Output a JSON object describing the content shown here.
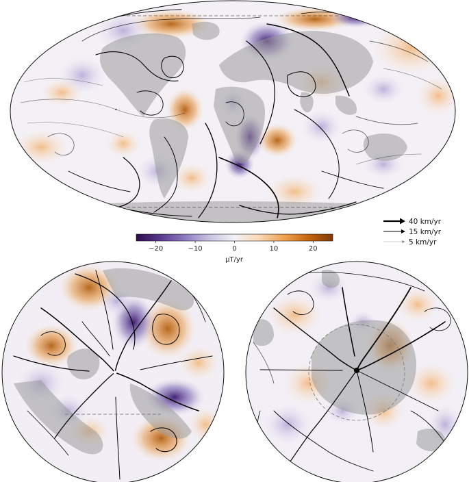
{
  "colorbar": {
    "unit": "μT/yr",
    "ticks": [
      "−20",
      "−10",
      "0",
      "10",
      "20"
    ],
    "tick_values": [
      -20,
      -10,
      0,
      10,
      20
    ],
    "range": [
      -25,
      25
    ],
    "colormap": [
      "#2d0a4e",
      "#5a3a8e",
      "#8e7cc3",
      "#c9c4e0",
      "#f4f2f7",
      "#fad9b5",
      "#f0a34f",
      "#c8650c",
      "#7f3b08"
    ]
  },
  "legend": {
    "items": [
      {
        "label": "40 km/yr",
        "speed": 40
      },
      {
        "label": "15 km/yr",
        "speed": 15
      },
      {
        "label": "5 km/yr",
        "speed": 5
      }
    ]
  },
  "colors": {
    "land": "#9a9a9a",
    "outline": "#111111",
    "streamline": "#000000"
  }
}
